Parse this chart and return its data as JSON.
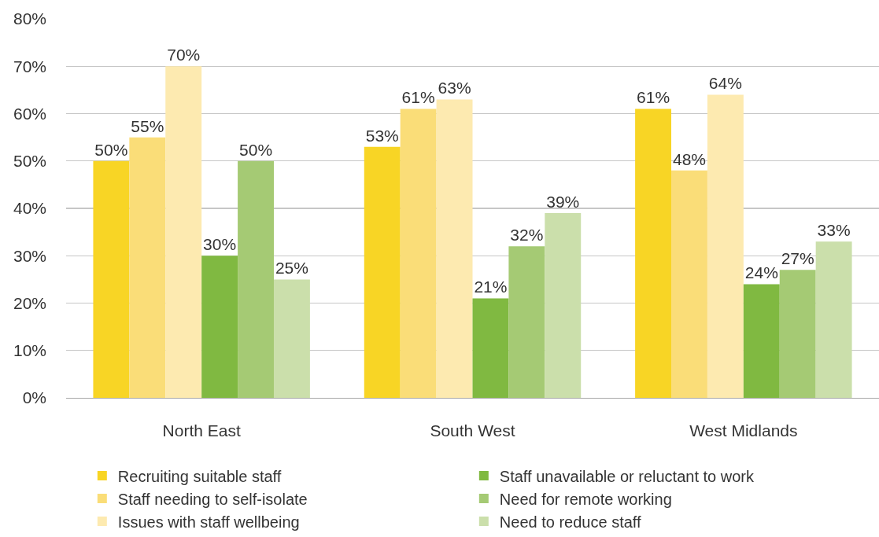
{
  "chart_data": {
    "type": "bar",
    "categories": [
      "North East",
      "South West",
      "West Midlands"
    ],
    "series": [
      {
        "name": "Recruiting suitable staff",
        "color": "#f8d525",
        "values": [
          50,
          53,
          61
        ],
        "value_labels": [
          "50%",
          "53%",
          "61%"
        ]
      },
      {
        "name": "Staff needing to self-isolate",
        "color": "#fadd78",
        "values": [
          55,
          61,
          48
        ],
        "value_labels": [
          "55%",
          "61%",
          "48%"
        ]
      },
      {
        "name": "Issues with staff wellbeing",
        "color": "#fdeab0",
        "values": [
          70,
          63,
          64
        ],
        "value_labels": [
          "70%",
          "63%",
          "64%"
        ]
      },
      {
        "name": "Staff unavailable or reluctant to work",
        "color": "#80b941",
        "values": [
          30,
          21,
          24
        ],
        "value_labels": [
          "30%",
          "21%",
          "24%"
        ]
      },
      {
        "name": "Need for remote working",
        "color": "#a5ca74",
        "values": [
          50,
          32,
          27
        ],
        "value_labels": [
          "50%",
          "32%",
          "27%"
        ]
      },
      {
        "name": "Need to reduce staff",
        "color": "#cbdfab",
        "values": [
          25,
          39,
          33
        ],
        "value_labels": [
          "25%",
          "39%",
          "33%"
        ]
      }
    ],
    "ylim": [
      0,
      80
    ],
    "yticks": [
      {
        "value": 0,
        "label": "0%"
      },
      {
        "value": 10,
        "label": "10%"
      },
      {
        "value": 20,
        "label": "20%"
      },
      {
        "value": 30,
        "label": "30%"
      },
      {
        "value": 40,
        "label": "40%"
      },
      {
        "value": 50,
        "label": "50%"
      },
      {
        "value": 60,
        "label": "60%"
      },
      {
        "value": 70,
        "label": "70%"
      },
      {
        "value": 80,
        "label": "80%"
      }
    ],
    "grid": "y",
    "legend": "bottom"
  }
}
